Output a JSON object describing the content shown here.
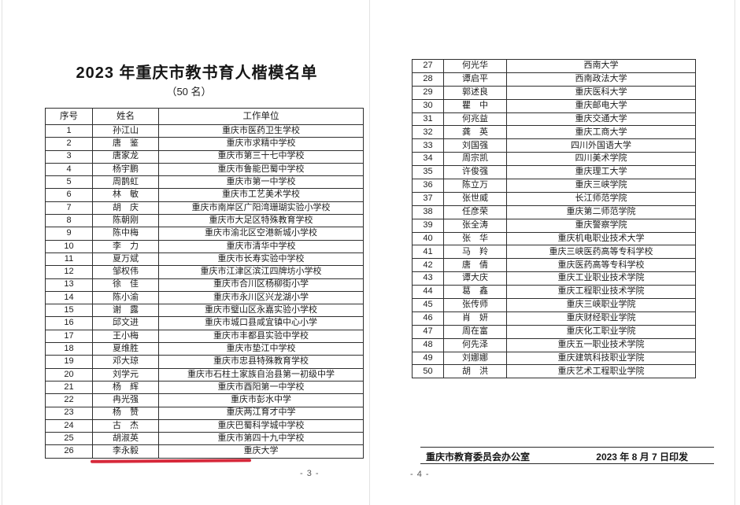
{
  "doc": {
    "title": "2023 年重庆市教书育人楷模名单",
    "subtitle": "（50 名）",
    "table_headers": [
      "序号",
      "姓名",
      "工作单位"
    ],
    "annotation": {
      "type": "red-underline",
      "marked_row": "26",
      "marked_name": "李永毅",
      "color": "#d7293b"
    },
    "pages": [
      {
        "page_number": "- 3 -",
        "rows": [
          [
            "1",
            "孙江山",
            "重庆市医药卫生学校"
          ],
          [
            "2",
            "唐　鉴",
            "重庆市求精中学校"
          ],
          [
            "3",
            "唐家龙",
            "重庆市第三十七中学校"
          ],
          [
            "4",
            "杨宇鹏",
            "重庆市鲁能巴蜀中学校"
          ],
          [
            "5",
            "周鹊虹",
            "重庆市第一中学校"
          ],
          [
            "6",
            "林　敏",
            "重庆市工艺美术学校"
          ],
          [
            "7",
            "胡　庆",
            "重庆市南岸区广阳湾珊瑚实验小学校"
          ],
          [
            "8",
            "陈朝刚",
            "重庆市大足区特殊教育学校"
          ],
          [
            "9",
            "陈中梅",
            "重庆市渝北区空港新城小学校"
          ],
          [
            "10",
            "李　力",
            "重庆市清华中学校"
          ],
          [
            "11",
            "夏万斌",
            "重庆市长寿实验中学校"
          ],
          [
            "12",
            "邹权伟",
            "重庆市江津区滨江四牌坊小学校"
          ],
          [
            "13",
            "徐　佳",
            "重庆市合川区杨柳街小学"
          ],
          [
            "14",
            "陈小渝",
            "重庆市永川区兴龙湖小学"
          ],
          [
            "15",
            "谢　露",
            "重庆市璧山区永嘉实验小学校"
          ],
          [
            "16",
            "邱文进",
            "重庆市城口县咸宜镇中心小学"
          ],
          [
            "17",
            "王小梅",
            "重庆市丰都县实验中学校"
          ],
          [
            "18",
            "夏维胜",
            "重庆市垫江中学校"
          ],
          [
            "19",
            "邓大琼",
            "重庆市忠县特殊教育学校"
          ],
          [
            "20",
            "刘学元",
            "重庆市石柱土家族自治县第一初级中学"
          ],
          [
            "21",
            "杨　辉",
            "重庆市酉阳第一中学校"
          ],
          [
            "22",
            "冉光强",
            "重庆市彭水中学"
          ],
          [
            "23",
            "杨　赞",
            "重庆两江育才中学"
          ],
          [
            "24",
            "古　杰",
            "重庆巴蜀科学城中学校"
          ],
          [
            "25",
            "胡淑英",
            "重庆市第四十九中学校"
          ],
          [
            "26",
            "李永毅",
            "重庆大学"
          ]
        ]
      },
      {
        "page_number": "- 4 -",
        "footer": {
          "issuer": "重庆市教育委员会办公室",
          "date": "2023 年 8 月 7 日印发"
        },
        "rows": [
          [
            "27",
            "何光华",
            "西南大学"
          ],
          [
            "28",
            "谭启平",
            "西南政法大学"
          ],
          [
            "29",
            "郭述良",
            "重庆医科大学"
          ],
          [
            "30",
            "瞿　中",
            "重庆邮电大学"
          ],
          [
            "31",
            "何兆益",
            "重庆交通大学"
          ],
          [
            "32",
            "龚　英",
            "重庆工商大学"
          ],
          [
            "33",
            "刘国强",
            "四川外国语大学"
          ],
          [
            "34",
            "周宗凯",
            "四川美术学院"
          ],
          [
            "35",
            "许俊强",
            "重庆理工大学"
          ],
          [
            "36",
            "陈立万",
            "重庆三峡学院"
          ],
          [
            "37",
            "张世威",
            "长江师范学院"
          ],
          [
            "38",
            "任彦荣",
            "重庆第二师范学院"
          ],
          [
            "39",
            "张全涛",
            "重庆警察学院"
          ],
          [
            "40",
            "张　华",
            "重庆机电职业技术大学"
          ],
          [
            "41",
            "马　羚",
            "重庆三峡医药高等专科学校"
          ],
          [
            "42",
            "唐　倩",
            "重庆医药高等专科学校"
          ],
          [
            "43",
            "谭大庆",
            "重庆工业职业技术学院"
          ],
          [
            "44",
            "葛　鑫",
            "重庆工程职业技术学院"
          ],
          [
            "45",
            "张传师",
            "重庆三峡职业学院"
          ],
          [
            "46",
            "肖　妍",
            "重庆财经职业学院"
          ],
          [
            "47",
            "周在富",
            "重庆化工职业学院"
          ],
          [
            "48",
            "何先泽",
            "重庆五一职业技术学院"
          ],
          [
            "49",
            "刘娜娜",
            "重庆建筑科技职业学院"
          ],
          [
            "50",
            "胡　洪",
            "重庆艺术工程职业学院"
          ]
        ]
      }
    ]
  }
}
